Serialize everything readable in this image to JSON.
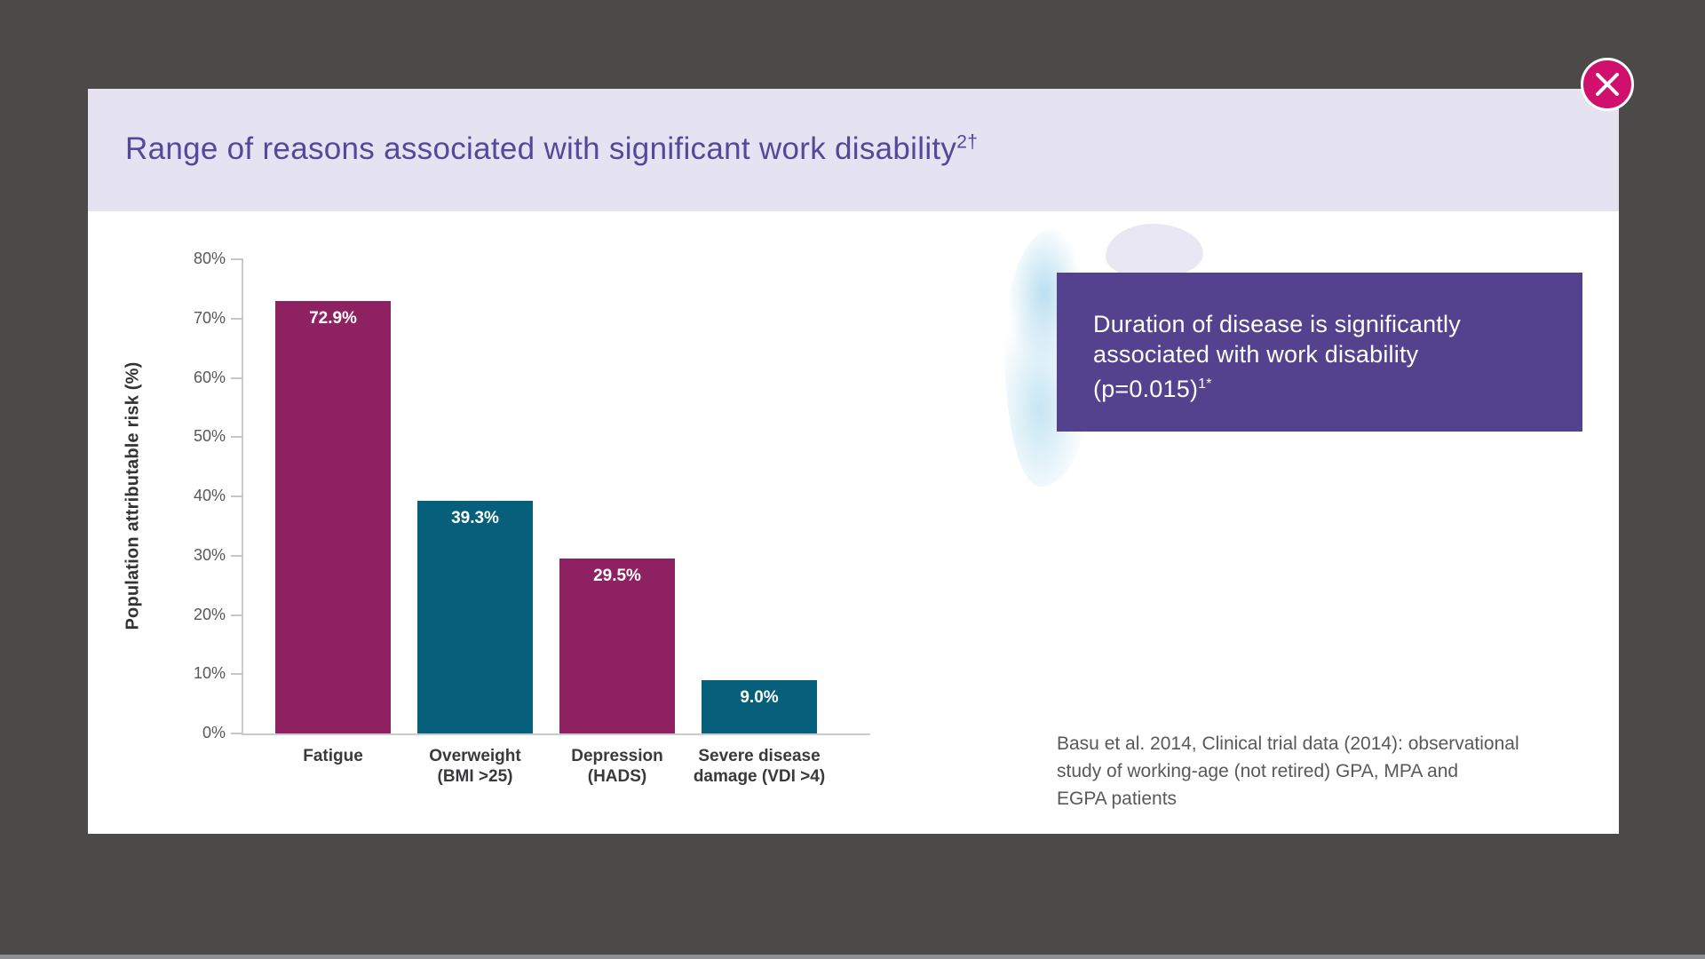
{
  "window": {
    "background_color": "#4B4A48",
    "bottom_strip_color": "#8D9095"
  },
  "modal": {
    "title": "Range of reasons associated with significant work disability",
    "title_superscript": "2†",
    "header_bg": "#E5E3F1",
    "title_color": "#54489A",
    "close_button_color": "#D0106C"
  },
  "chart_data": {
    "type": "bar",
    "title": "",
    "categories": [
      [
        "Fatigue"
      ],
      [
        "Overweight",
        "(BMI >25)"
      ],
      [
        "Depression",
        "(HADS)"
      ],
      [
        "Severe disease",
        "damage (VDI >4)"
      ]
    ],
    "values": [
      72.9,
      39.3,
      29.5,
      9.0
    ],
    "value_labels": [
      "72.9%",
      "39.3%",
      "29.5%",
      "9.0%"
    ],
    "bar_colors": [
      "#8E2162",
      "#06607B",
      "#8E2162",
      "#06607B"
    ],
    "xlabel": "",
    "ylabel": "Population attributable risk (%)",
    "ylim": [
      0,
      80
    ],
    "ytick_step": 10,
    "ytick_labels": [
      "0%",
      "10%",
      "20%",
      "30%",
      "40%",
      "50%",
      "60%",
      "70%",
      "80%"
    ],
    "grid": false,
    "legend": "none"
  },
  "callout": {
    "lines": [
      "Duration of disease is significantly",
      "associated with work disability",
      "(p=0.015)"
    ],
    "superscript": "1*",
    "bg": "#54428F",
    "text_color": "#FFFFFF"
  },
  "citation": {
    "lines": [
      "Basu et al. 2014, Clinical trial data (2014): observational",
      "study of working-age (not retired) GPA, MPA and",
      "EGPA patients"
    ],
    "color": "#58595B"
  }
}
